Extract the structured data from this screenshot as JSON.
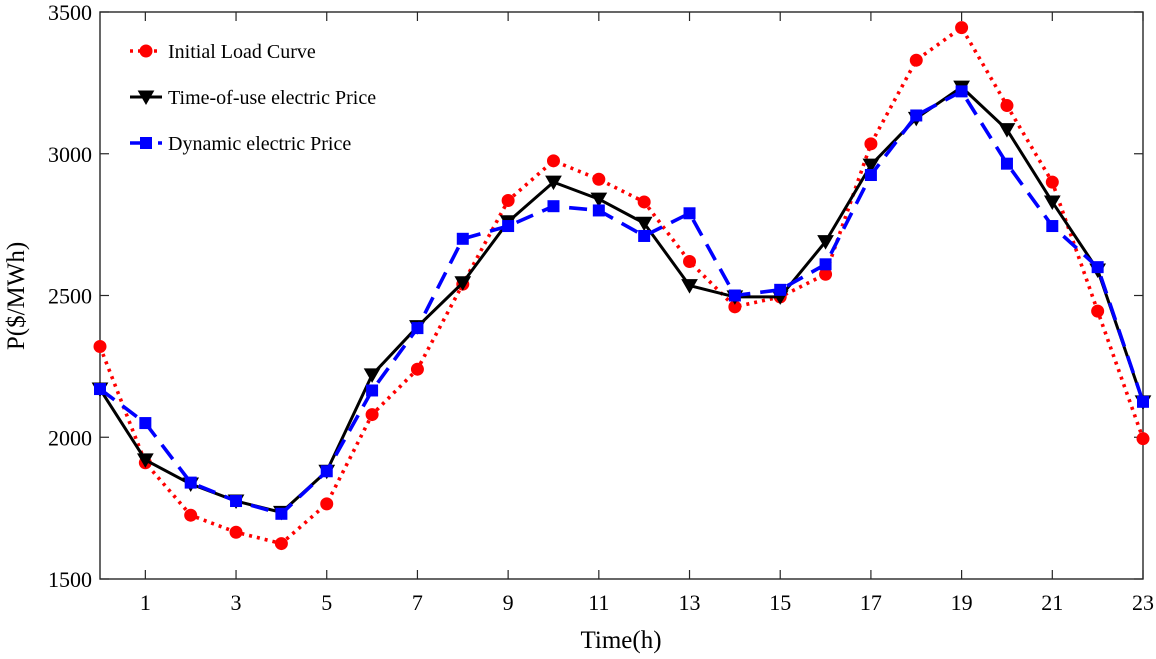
{
  "chart_data": {
    "type": "line",
    "title": "",
    "xlabel": "Time(h)",
    "ylabel": "P($/MWh)",
    "xlim": [
      0,
      23
    ],
    "ylim": [
      1500,
      3500
    ],
    "grid": false,
    "legend_position": "top-left",
    "x": [
      0,
      1,
      2,
      3,
      4,
      5,
      6,
      7,
      8,
      9,
      10,
      11,
      12,
      13,
      14,
      15,
      16,
      17,
      18,
      19,
      20,
      21,
      22,
      23
    ],
    "xticks": [
      1,
      3,
      5,
      7,
      9,
      11,
      13,
      15,
      17,
      19,
      21,
      23
    ],
    "xtick_labels": [
      "1",
      "3",
      "5",
      "7",
      "9",
      "11",
      "13",
      "15",
      "17",
      "19",
      "21",
      "23"
    ],
    "yticks": [
      1500,
      2000,
      2500,
      3000,
      3500
    ],
    "ytick_labels": [
      "1500",
      "2000",
      "2500",
      "3000",
      "3500"
    ],
    "series": [
      {
        "name": "Initial Load Curve",
        "color": "#ff0000",
        "line_style": "dotted",
        "marker": "circle",
        "values": [
          2320,
          1910,
          1725,
          1665,
          1625,
          1765,
          2080,
          2240,
          2540,
          2835,
          2975,
          2910,
          2830,
          2620,
          2460,
          2495,
          2575,
          3035,
          3330,
          3445,
          3170,
          2900,
          2445,
          1995
        ]
      },
      {
        "name": "Time-of-use electric Price",
        "color": "#000000",
        "line_style": "solid",
        "marker": "triangle-down",
        "values": [
          2170,
          1920,
          1835,
          1775,
          1735,
          1880,
          2220,
          2390,
          2545,
          2760,
          2900,
          2840,
          2755,
          2535,
          2495,
          2495,
          2690,
          2960,
          3125,
          3235,
          3085,
          2830,
          2590,
          2125
        ]
      },
      {
        "name": "Dynamic electric Price",
        "color": "#0000ff",
        "line_style": "dashed",
        "marker": "square",
        "values": [
          2170,
          2050,
          1840,
          1775,
          1730,
          1880,
          2165,
          2385,
          2700,
          2745,
          2815,
          2800,
          2710,
          2790,
          2500,
          2520,
          2610,
          2925,
          3135,
          3220,
          2965,
          2745,
          2600,
          2125
        ]
      }
    ]
  }
}
